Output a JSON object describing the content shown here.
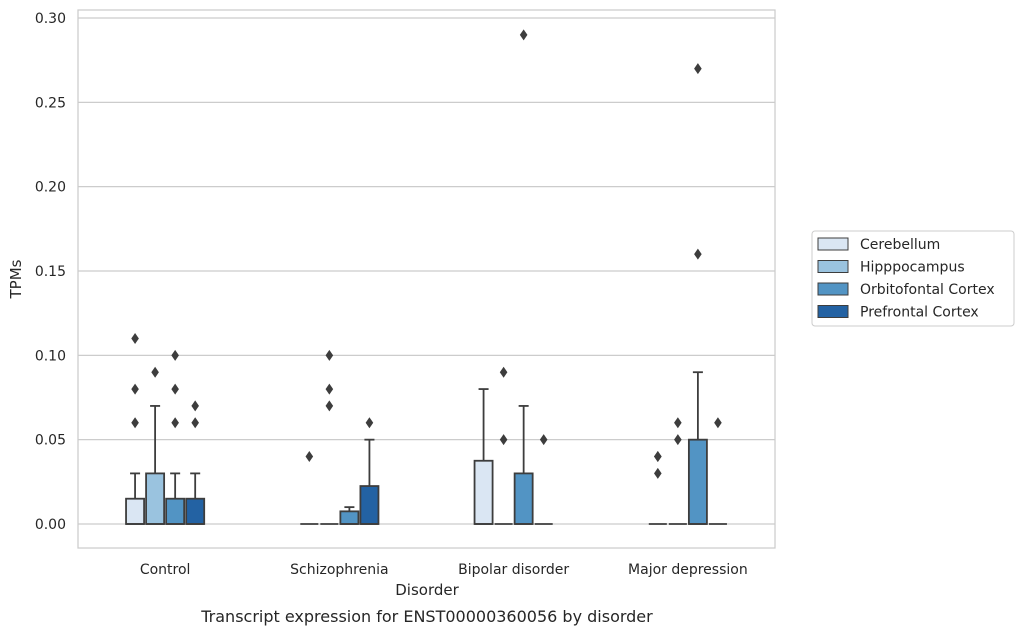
{
  "caption": "Transcript expression for ENST00000360056 by disorder",
  "chart_data": {
    "type": "box",
    "title": "",
    "xlabel": "Disorder",
    "ylabel": "TPMs",
    "ylim": [
      -0.014,
      0.305
    ],
    "yticks": [
      "0.00",
      "0.05",
      "0.10",
      "0.15",
      "0.20",
      "0.25",
      "0.30"
    ],
    "ytick_values": [
      0,
      0.05,
      0.1,
      0.15,
      0.2,
      0.25,
      0.3
    ],
    "grid": "horizontal",
    "legend_position": "right",
    "categories": [
      "Control",
      "Schizophrenia",
      "Bipolar disorder",
      "Major depression"
    ],
    "series": [
      {
        "name": "Cerebellum",
        "color": "#dae6f3",
        "boxes": [
          {
            "q1": 0,
            "median": 0,
            "q3": 0.015,
            "whisker_low": 0,
            "whisker_high": 0.03,
            "outliers": [
              0.11,
              0.08,
              0.06
            ]
          },
          {
            "q1": 0,
            "median": 0,
            "q3": 0,
            "whisker_low": 0,
            "whisker_high": 0,
            "outliers": [
              0.04
            ]
          },
          {
            "q1": 0,
            "median": 0,
            "q3": 0.0375,
            "whisker_low": 0,
            "whisker_high": 0.08,
            "outliers": []
          },
          {
            "q1": 0,
            "median": 0,
            "q3": 0,
            "whisker_low": 0,
            "whisker_high": 0,
            "outliers": [
              0.04,
              0.03,
              0.04
            ]
          }
        ]
      },
      {
        "name": "Hipppocampus",
        "color": "#9ac3df",
        "boxes": [
          {
            "q1": 0,
            "median": 0,
            "q3": 0.03,
            "whisker_low": 0,
            "whisker_high": 0.07,
            "outliers": [
              0.09
            ]
          },
          {
            "q1": 0,
            "median": 0,
            "q3": 0,
            "whisker_low": 0,
            "whisker_high": 0,
            "outliers": [
              0.1,
              0.08,
              0.07
            ]
          },
          {
            "q1": 0,
            "median": 0,
            "q3": 0,
            "whisker_low": 0,
            "whisker_high": 0,
            "outliers": [
              0.09,
              0.05
            ]
          },
          {
            "q1": 0,
            "median": 0,
            "q3": 0,
            "whisker_low": 0,
            "whisker_high": 0,
            "outliers": [
              0.06,
              0.05
            ]
          }
        ]
      },
      {
        "name": "Orbitofontal Cortex",
        "color": "#5294c4",
        "boxes": [
          {
            "q1": 0,
            "median": 0,
            "q3": 0.015,
            "whisker_low": 0,
            "whisker_high": 0.03,
            "outliers": [
              0.1,
              0.08,
              0.06
            ]
          },
          {
            "q1": 0,
            "median": 0,
            "q3": 0.0075,
            "whisker_low": 0,
            "whisker_high": 0.01,
            "outliers": []
          },
          {
            "q1": 0,
            "median": 0,
            "q3": 0.03,
            "whisker_low": 0,
            "whisker_high": 0.07,
            "outliers": [
              0.29
            ]
          },
          {
            "q1": 0,
            "median": 0,
            "q3": 0.05,
            "whisker_low": 0,
            "whisker_high": 0.09,
            "outliers": [
              0.27,
              0.16
            ]
          }
        ]
      },
      {
        "name": "Prefrontal Cortex",
        "color": "#2362a3",
        "boxes": [
          {
            "q1": 0,
            "median": 0,
            "q3": 0.015,
            "whisker_low": 0,
            "whisker_high": 0.03,
            "outliers": [
              0.07,
              0.06
            ]
          },
          {
            "q1": 0,
            "median": 0,
            "q3": 0.0225,
            "whisker_low": 0,
            "whisker_high": 0.05,
            "outliers": [
              0.06
            ]
          },
          {
            "q1": 0,
            "median": 0,
            "q3": 0,
            "whisker_low": 0,
            "whisker_high": 0,
            "outliers": [
              0.05
            ]
          },
          {
            "q1": 0,
            "median": 0,
            "q3": 0,
            "whisker_low": 0,
            "whisker_high": 0,
            "outliers": [
              0.06
            ]
          }
        ]
      }
    ]
  }
}
